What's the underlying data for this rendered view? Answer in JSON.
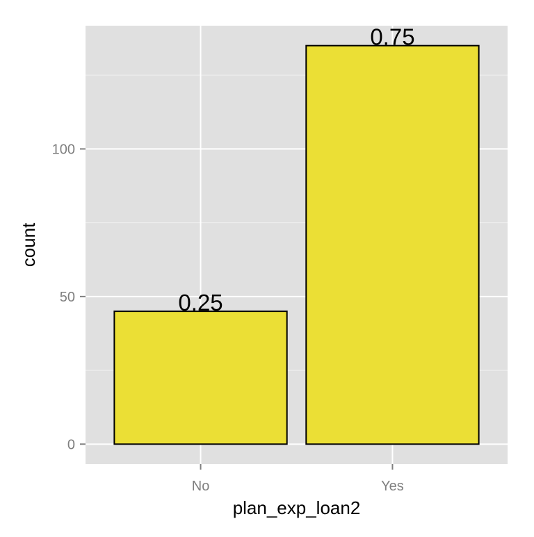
{
  "chart_data": {
    "type": "bar",
    "categories": [
      "No",
      "Yes"
    ],
    "values": [
      45,
      135
    ],
    "data_labels": [
      "0.25",
      "0.75"
    ],
    "title": "",
    "xlabel": "plan_exp_loan2",
    "ylabel": "count",
    "ylim": [
      -6.75,
      141.75
    ],
    "yticks": [
      0,
      50,
      100
    ],
    "ytick_labels": [
      "0",
      "50",
      "100"
    ],
    "grid": true,
    "legend": "none",
    "colors": {
      "panel_background": "#e0e0e0",
      "grid_major": "#ffffff",
      "grid_minor": "#f0f0f0",
      "bar_fill": "#ebdf35",
      "bar_outline": "#000000",
      "tick_label": "#7f7f7f",
      "axis_title": "#000000"
    }
  }
}
